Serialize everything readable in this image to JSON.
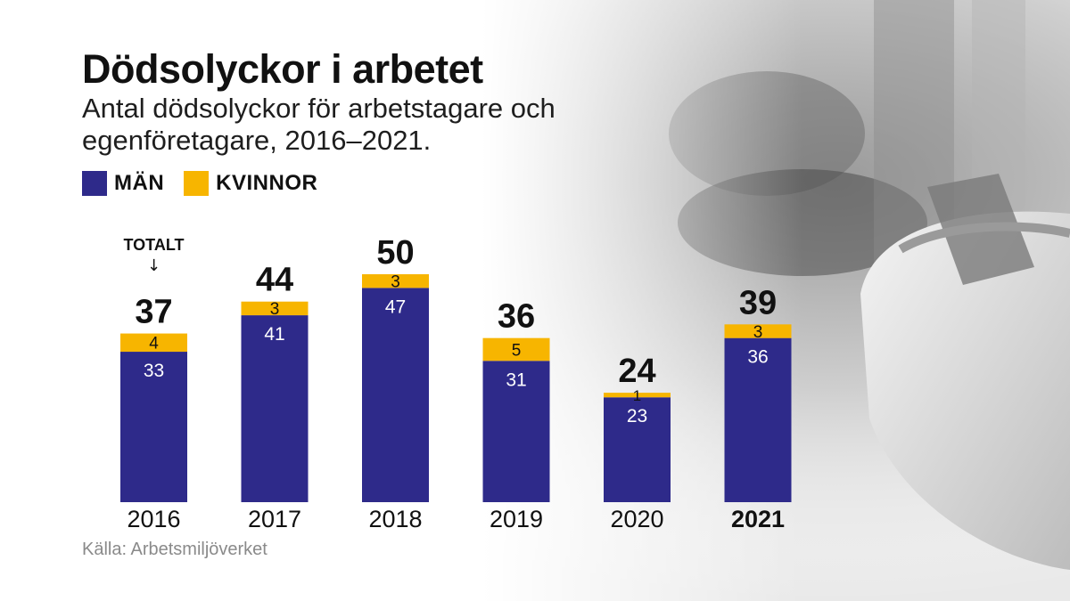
{
  "title": "Dödsolyckor i arbetet",
  "subtitle": "Antal dödsolyckor för arbetstagare och egenföretagare, 2016–2021.",
  "legend": [
    {
      "label": "MÄN",
      "color": "#2e2a8a"
    },
    {
      "label": "KVINNOR",
      "color": "#f7b500"
    }
  ],
  "total_label": "TOTALT",
  "total_arrow": "↓",
  "source": "Källa: Arbetsmiljöverket",
  "chart_data": {
    "type": "bar",
    "stacked": true,
    "categories": [
      "2016",
      "2017",
      "2018",
      "2019",
      "2020",
      "2021"
    ],
    "highlight_category": "2021",
    "series": [
      {
        "name": "MÄN",
        "color": "#2e2a8a",
        "values": [
          33,
          41,
          47,
          31,
          23,
          36
        ]
      },
      {
        "name": "KVINNOR",
        "color": "#f7b500",
        "values": [
          4,
          3,
          3,
          5,
          1,
          3
        ]
      }
    ],
    "totals": [
      37,
      44,
      50,
      36,
      24,
      39
    ],
    "ylim": [
      0,
      50
    ],
    "grid": false
  }
}
